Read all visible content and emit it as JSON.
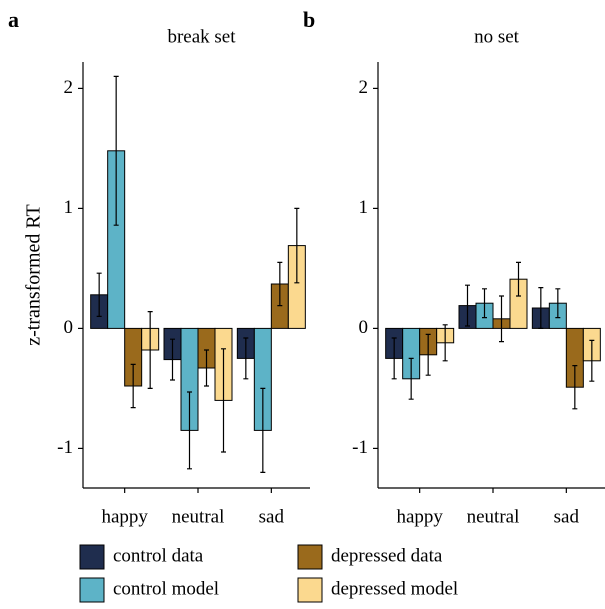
{
  "chart_data": [
    {
      "type": "bar",
      "panel_label": "a",
      "title": "break set",
      "ylabel": "z-transformed RT",
      "categories": [
        "happy",
        "neutral",
        "sad"
      ],
      "series": [
        {
          "name": "control data",
          "color": "#1f2d4e",
          "values": [
            0.28,
            -0.26,
            -0.25
          ],
          "errors": [
            0.18,
            0.17,
            0.17
          ]
        },
        {
          "name": "control model",
          "color": "#5db3c7",
          "values": [
            1.48,
            -0.85,
            -0.85
          ],
          "errors": [
            0.62,
            0.32,
            0.35
          ]
        },
        {
          "name": "depressed data",
          "color": "#9a6a1c",
          "values": [
            -0.48,
            -0.33,
            0.37
          ],
          "errors": [
            0.18,
            0.15,
            0.18
          ]
        },
        {
          "name": "depressed model",
          "color": "#fbd98f",
          "values": [
            -0.18,
            -0.6,
            0.69
          ],
          "errors": [
            0.32,
            0.43,
            0.31
          ]
        }
      ],
      "ylim": [
        -1.33,
        2.22
      ],
      "yticks": [
        -1,
        0,
        1,
        2
      ]
    },
    {
      "type": "bar",
      "panel_label": "b",
      "title": "no set",
      "categories": [
        "happy",
        "neutral",
        "sad"
      ],
      "series": [
        {
          "values": [
            -0.25,
            0.19,
            0.17
          ],
          "errors": [
            0.17,
            0.17,
            0.17
          ]
        },
        {
          "values": [
            -0.42,
            0.21,
            0.21
          ],
          "errors": [
            0.17,
            0.12,
            0.12
          ]
        },
        {
          "values": [
            -0.22,
            0.08,
            -0.49
          ],
          "errors": [
            0.17,
            0.19,
            0.18
          ]
        },
        {
          "values": [
            -0.12,
            0.41,
            -0.27
          ],
          "errors": [
            0.15,
            0.14,
            0.17
          ]
        }
      ],
      "ylim": [
        -1.33,
        2.22
      ],
      "yticks": [
        -1,
        0,
        1,
        2
      ]
    }
  ]
}
